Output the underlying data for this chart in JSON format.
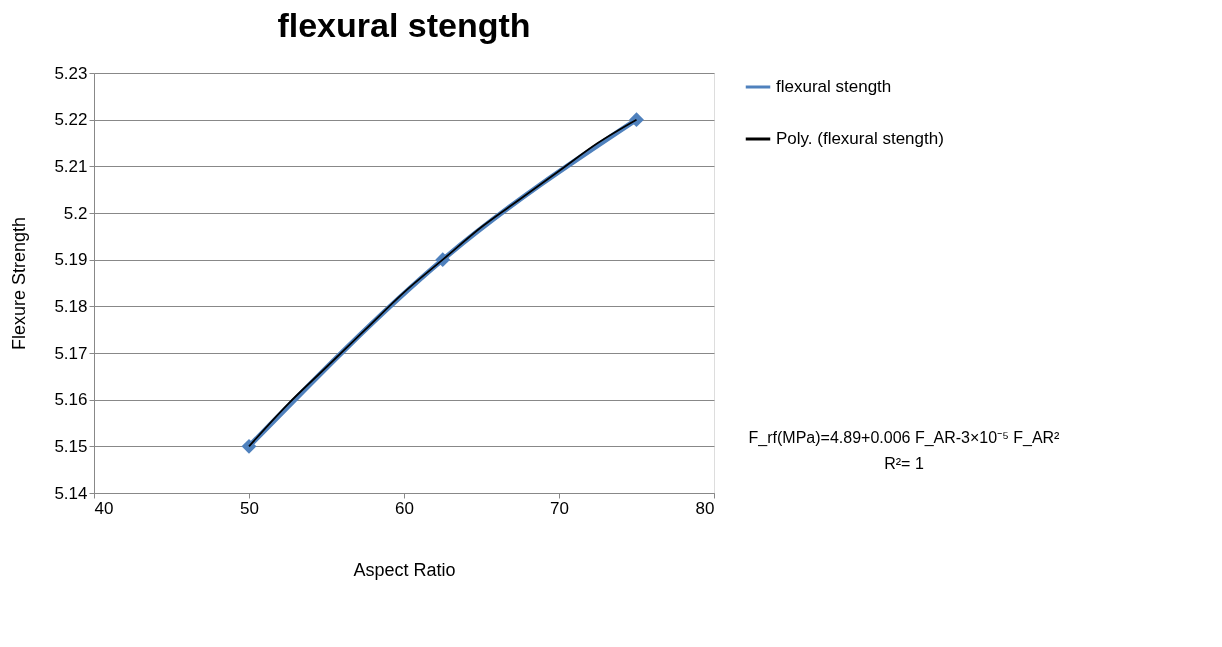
{
  "chart_data": {
    "type": "line",
    "title": "flexural  stength",
    "xlabel": "Aspect Ratio",
    "ylabel": "Flexure Strength",
    "xlim": [
      40,
      80
    ],
    "xticks": [
      40,
      50,
      60,
      70,
      80
    ],
    "ylim": [
      5.14,
      5.23
    ],
    "yticks": [
      5.14,
      5.15,
      5.16,
      5.17,
      5.18,
      5.19,
      5.2,
      5.21,
      5.22,
      5.23
    ],
    "grid": "y",
    "legend": "right",
    "series": [
      {
        "name": "flexural  stength",
        "color": "#4f81bd",
        "marker": "diamond",
        "x": [
          50,
          62.5,
          75
        ],
        "values": [
          5.15,
          5.19,
          5.22
        ]
      },
      {
        "name": "Poly. (flexural  stength)",
        "color": "#000000",
        "marker": "none",
        "x": [
          50,
          52.5,
          55,
          57.5,
          60,
          62.5,
          65,
          67.5,
          70,
          72.5,
          75
        ],
        "values": [
          5.15,
          5.159,
          5.167,
          5.175,
          5.183,
          5.19,
          5.197,
          5.203,
          5.209,
          5.215,
          5.22
        ]
      }
    ],
    "annotations": [
      "F_rf(MPa)=4.89+0.006 F_AR-3×10⁻⁵ F_AR²",
      "R²= 1"
    ]
  }
}
